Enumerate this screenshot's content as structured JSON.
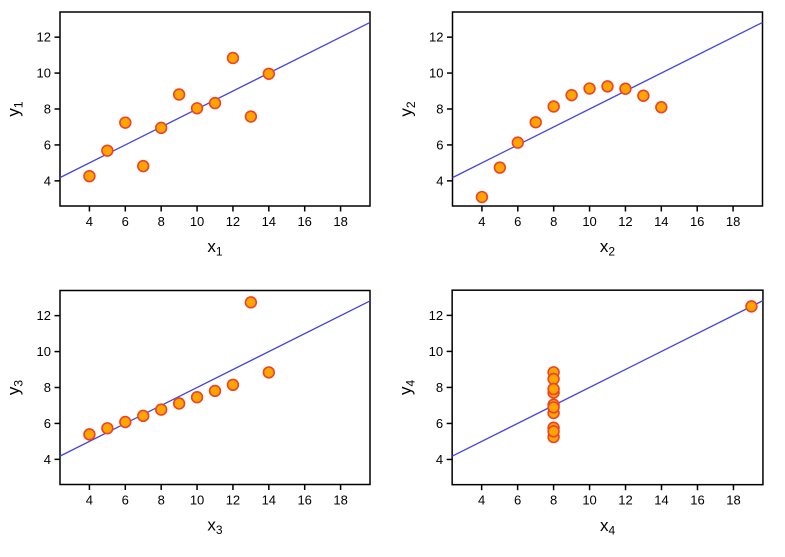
{
  "page": {
    "background": "#ffffff"
  },
  "style": {
    "point_fill": "#FFA500",
    "point_stroke": "#EE4227",
    "line_color": "#4242E8",
    "axis_color": "#000000",
    "tick_label_size": 13,
    "axis_label_size": 17,
    "sub_label_size": 12,
    "point_radius": 5.4
  },
  "chart_data": [
    {
      "type": "scatter",
      "name": "y1-vs-x1",
      "xlabel": "x",
      "xlabel_sub": "1",
      "ylabel": "y",
      "ylabel_sub": "1",
      "x": [
        10,
        8,
        13,
        9,
        11,
        14,
        6,
        4,
        12,
        7,
        5
      ],
      "y": [
        8.04,
        6.95,
        7.58,
        8.81,
        8.33,
        9.96,
        7.24,
        4.26,
        10.84,
        4.82,
        5.68
      ],
      "regression_line": {
        "slope": 0.5,
        "intercept": 3.0
      },
      "xlim": [
        2.36,
        19.64
      ],
      "ylim": [
        2.6,
        13.4
      ],
      "xticks": [
        4,
        6,
        8,
        10,
        12,
        14,
        16,
        18
      ],
      "yticks": [
        4,
        6,
        8,
        10,
        12
      ],
      "grid": false,
      "legend": null
    },
    {
      "type": "scatter",
      "name": "y2-vs-x2",
      "xlabel": "x",
      "xlabel_sub": "2",
      "ylabel": "y",
      "ylabel_sub": "2",
      "x": [
        10,
        8,
        13,
        9,
        11,
        14,
        6,
        4,
        12,
        7,
        5
      ],
      "y": [
        9.14,
        8.14,
        8.74,
        8.77,
        9.26,
        8.1,
        6.13,
        3.1,
        9.13,
        7.26,
        4.74
      ],
      "regression_line": {
        "slope": 0.5,
        "intercept": 3.0
      },
      "xlim": [
        2.36,
        19.64
      ],
      "ylim": [
        2.6,
        13.4
      ],
      "xticks": [
        4,
        6,
        8,
        10,
        12,
        14,
        16,
        18
      ],
      "yticks": [
        4,
        6,
        8,
        10,
        12
      ],
      "grid": false,
      "legend": null
    },
    {
      "type": "scatter",
      "name": "y3-vs-x3",
      "xlabel": "x",
      "xlabel_sub": "3",
      "ylabel": "y",
      "ylabel_sub": "3",
      "x": [
        10,
        8,
        13,
        9,
        11,
        14,
        6,
        4,
        12,
        7,
        5
      ],
      "y": [
        7.46,
        6.77,
        12.74,
        7.11,
        7.81,
        8.84,
        6.08,
        5.39,
        8.15,
        6.42,
        5.73
      ],
      "regression_line": {
        "slope": 0.5,
        "intercept": 3.0
      },
      "xlim": [
        2.36,
        19.64
      ],
      "ylim": [
        2.6,
        13.4
      ],
      "xticks": [
        4,
        6,
        8,
        10,
        12,
        14,
        16,
        18
      ],
      "yticks": [
        4,
        6,
        8,
        10,
        12
      ],
      "grid": false,
      "legend": null
    },
    {
      "type": "scatter",
      "name": "y4-vs-x4",
      "xlabel": "x",
      "xlabel_sub": "4",
      "ylabel": "y",
      "ylabel_sub": "4",
      "x": [
        8,
        8,
        8,
        8,
        8,
        8,
        8,
        19,
        8,
        8,
        8
      ],
      "y": [
        6.58,
        5.76,
        7.71,
        8.84,
        8.47,
        7.04,
        5.25,
        12.5,
        5.56,
        7.91,
        6.89
      ],
      "regression_line": {
        "slope": 0.5,
        "intercept": 3.0
      },
      "xlim": [
        2.36,
        19.64
      ],
      "ylim": [
        2.6,
        13.4
      ],
      "xticks": [
        4,
        6,
        8,
        10,
        12,
        14,
        16,
        18
      ],
      "yticks": [
        4,
        6,
        8,
        10,
        12
      ],
      "grid": false,
      "legend": null
    }
  ]
}
